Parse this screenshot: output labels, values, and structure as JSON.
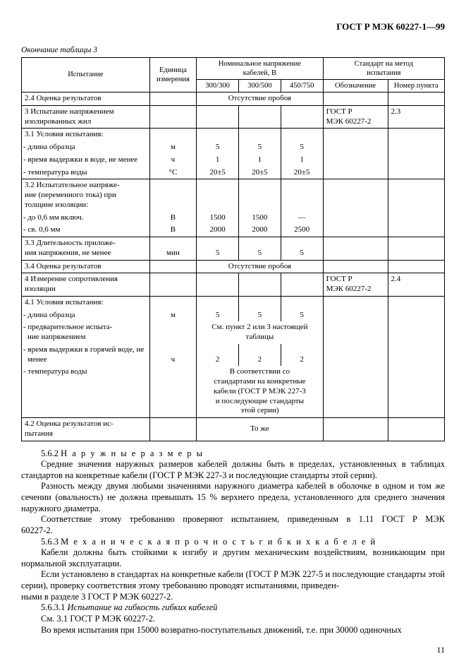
{
  "document_number": "ГОСТ Р МЭК 60227-1—99",
  "table_caption": "Окончание таблицы 3",
  "headers": {
    "test": "Испытание",
    "unit": "Единица\nизмерения",
    "voltage_group": "Номинальное напряжение\nкабелей, В",
    "v1": "300/300",
    "v2": "300/500",
    "v3": "450/750",
    "std_group": "Стандарт на метод\nиспытания",
    "std_name": "Обозначение",
    "std_clause": "Номер пункта"
  },
  "row_2_4": {
    "label": "2.4 Оценка результатов",
    "center_text": "Отсутствие пробоя"
  },
  "row_3": {
    "label": "3 Испытание напряжением изолированных жил",
    "std": "ГОСТ Р\nМЭК 60227-2",
    "clause": "2.3"
  },
  "row_3_1": {
    "label": "3.1 Условия испытания:",
    "sub1": "- длина образца",
    "sub1_unit": "м",
    "sub1_v1": "5",
    "sub1_v2": "5",
    "sub1_v3": "5",
    "sub2": "- время выдержки в воде, не менее",
    "sub2_unit": "ч",
    "sub2_v1": "1",
    "sub2_v2": "1",
    "sub2_v3": "1",
    "sub3": "- температура воды",
    "sub3_unit": "°С",
    "sub3_v1": "20±5",
    "sub3_v2": "20±5",
    "sub3_v3": "20±5"
  },
  "row_3_2": {
    "label": "3.2 Испытательное напряже-\nние (переменного тока) при\nтолщине изоляции:",
    "sub1": "- до 0,6 мм включ.",
    "sub1_unit": "В",
    "sub1_v1": "1500",
    "sub1_v2": "1500",
    "sub1_v3": "—",
    "sub2": "- св. 0,6 мм",
    "sub2_unit": "В",
    "sub2_v1": "2000",
    "sub2_v2": "2000",
    "sub2_v3": "2500"
  },
  "row_3_3": {
    "label": "3.3 Длительность приложе-\nния напряжения, не менее",
    "unit": "мин",
    "v1": "5",
    "v2": "5",
    "v3": "5"
  },
  "row_3_4": {
    "label": "3.4 Оценка результатов",
    "center_text": "Отсутствие пробоя"
  },
  "row_4": {
    "label": "4 Измерение сопротивления изоляции",
    "std": "ГОСТ Р\nМЭК 60227-2",
    "clause": "2.4"
  },
  "row_4_1": {
    "label": "4.1 Условия испытания:",
    "sub1": "- длина образца",
    "sub1_unit": "м",
    "sub1_v1": "5",
    "sub1_v2": "5",
    "sub1_v3": "5",
    "sub2": "- предварительное испыта-\nние напряжением",
    "sub2_center": "См. пункт 2 или 3 настоящей\nтаблицы",
    "sub3": "- время выдержки в горячей воде, не менее",
    "sub3_unit": "ч",
    "sub3_v1": "2",
    "sub3_v2": "2",
    "sub3_v3": "2",
    "sub4": "- температура воды",
    "sub4_center": "В соответствии со\nстандартами на конкретные\nкабели (ГОСТ Р МЭК 227-3\nи последующие стандарты\nэтой серии)"
  },
  "row_4_2": {
    "label": "4.2 Оценка результатов ис-\nпытания",
    "center_text": "То же"
  },
  "body": {
    "p1_num": "5.6.2",
    "p1_title": "Н а р у ж н ы е   р а з м е р ы",
    "p2": "Средние значения наружных размеров кабелей должны быть в пределах, установленных в таблицах стандартов на конкретные кабели (ГОСТ Р МЭК 227-3 и последующие стандарты этой серии).",
    "p3": "Разность между двумя любыми значениями наружного диаметра кабелей в оболочке в одном и том же сечении (овальность) не должна превышать 15 % верхнего предела, установленного для среднего значения наружного диаметра.",
    "p4": "Соответствие этому требованию проверяют испытанием, приведенным в 1.11 ГОСТ Р МЭК 60227-2.",
    "p5_num": "5.6.3",
    "p5_title": "М е х а н и ч е с к а я   п р о ч н о с т ь   г и б к и х   к а б е л е й",
    "p6": "Кабели должны быть стойкими к изгибу и другим механическим воздействиям, возникающим при нормальной эксплуатации.",
    "p7": "Если установлено в стандартах на конкретные кабели (ГОСТ Р МЭК 227-5 и последующие стандарты этой серии), проверку соответствия этому требованию проводят испытаниями, приведен-\nными в разделе 3 ГОСТ Р МЭК 60227-2.",
    "p8_num": "5.6.3.1",
    "p8_title": "Испытание на гибкость гибких кабелей",
    "p9": "См. 3.1 ГОСТ Р МЭК 60227-2.",
    "p10": "Во время испытания при 15000 возвратно-поступательных движений, т.е. при 30000 одиночных"
  },
  "page_number": "11"
}
